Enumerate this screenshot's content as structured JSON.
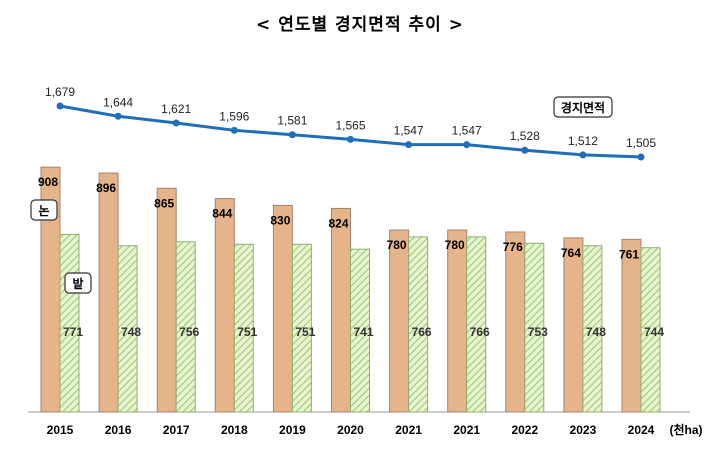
{
  "chart_data": {
    "type": "bar",
    "title": "< 연도별 경지면적 추이 >",
    "unit": "(천ha)",
    "categories": [
      "2015",
      "2016",
      "2017",
      "2018",
      "2019",
      "2020",
      "2021",
      "2021",
      "2022",
      "2023",
      "2024"
    ],
    "series": [
      {
        "name": "논",
        "type": "bar",
        "color": "#E6B48A",
        "values": [
          908,
          896,
          865,
          844,
          830,
          824,
          780,
          780,
          776,
          764,
          761
        ]
      },
      {
        "name": "밭",
        "type": "bar",
        "color": "#C6E0A0",
        "pattern": "diagonal-hatch",
        "values": [
          771,
          748,
          756,
          751,
          751,
          741,
          766,
          766,
          753,
          748,
          744
        ]
      },
      {
        "name": "경지면적",
        "type": "line",
        "color": "#1F6FB8",
        "values": [
          1679,
          1644,
          1621,
          1596,
          1581,
          1565,
          1547,
          1547,
          1528,
          1512,
          1505
        ]
      }
    ],
    "value_labels": {
      "paddy": [
        "908",
        "896",
        "865",
        "844",
        "830",
        "824",
        "780",
        "780",
        "776",
        "764",
        "761"
      ],
      "upland": [
        "771",
        "748",
        "756",
        "751",
        "751",
        "741",
        "766",
        "766",
        "753",
        "748",
        "744"
      ],
      "total": [
        "1,679",
        "1,644",
        "1,621",
        "1,596",
        "1,581",
        "1,565",
        "1,547",
        "1,547",
        "1,528",
        "1,512",
        "1,505"
      ]
    },
    "bar_ylim": [
      410,
      1000
    ],
    "grid": false,
    "legend": "inline labels"
  }
}
